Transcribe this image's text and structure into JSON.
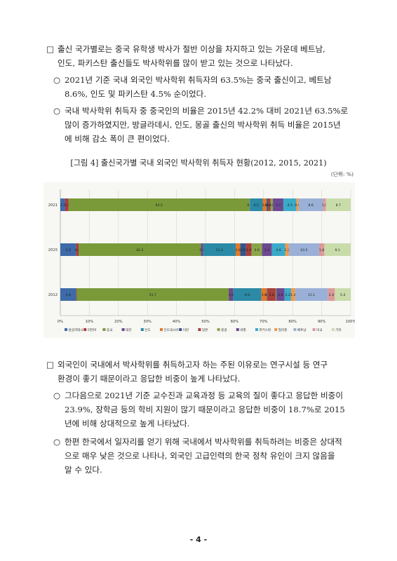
{
  "sec1": {
    "main": {
      "marker": "□",
      "line1": "출신 국가별로는 중국 유학생 박사가 절반 이상을 차지하고 있는 가운데 베트남,",
      "line2": "인도, 파키스탄 출신들도 박사학위를 많이 받고 있는 것으로 나타났다."
    },
    "sub1": {
      "marker": "○",
      "line1": "2021년 기준 국내 외국인 박사학위 취득자의 63.5%는 중국 출신이고, 베트남",
      "line2": "8.6%, 인도 및 파키스탄 4.5% 순이었다."
    },
    "sub2": {
      "marker": "○",
      "line1": "국내 박사학위 취득자 중 중국인의 비율은 2015년 42.2% 대비 2021년 63.5%로",
      "line2": "많이 증가하였지만, 방글라데시, 인도, 몽골 출신의 박사학위 취득 비율은 2015년",
      "line3": "에 비해 감소 폭이 큰 편이었다."
    }
  },
  "figure": {
    "caption": "[그림 4] 출신국가별 국내 외국인 박사학위 취득자 현황(2012, 2015, 2021)",
    "unit": "(단위: %)"
  },
  "chart_data": {
    "type": "bar",
    "orientation": "horizontal",
    "stacked": true,
    "categories": [
      "2021",
      "2015",
      "2012"
    ],
    "xlim": [
      0,
      100
    ],
    "xticks": [
      "0%",
      "10%",
      "20%",
      "30%",
      "40%",
      "50%",
      "60%",
      "70%",
      "80%",
      "90%",
      "100%"
    ],
    "grid": true,
    "legend_position": "bottom",
    "series": [
      {
        "name": "방글라데시",
        "color": "#3e6aa8",
        "values": [
          1.7,
          5.5,
          5.4
        ],
        "labels": [
          "1.7",
          "5.5",
          "5.4"
        ]
      },
      {
        "name": "미얀마",
        "color": "#b03a3a",
        "values": [
          1.2,
          0.8,
          0.2
        ],
        "labels": [
          "1.2",
          "0.8",
          ""
        ]
      },
      {
        "name": "중국",
        "color": "#7a9a3a",
        "values": [
          63.5,
          42.2,
          51.7
        ],
        "labels": [
          "63.5",
          "42.2",
          "51.7"
        ]
      },
      {
        "name": "대만",
        "color": "#6a4a8a",
        "values": [
          0.1,
          0.8,
          1.5
        ],
        "labels": [
          "0.1",
          "0.8",
          "1.5"
        ]
      },
      {
        "name": "인도",
        "color": "#2b8aa6",
        "values": [
          4.5,
          11.2,
          9.6
        ],
        "labels": [
          "4.5",
          "11.2",
          "9.6"
        ]
      },
      {
        "name": "인도네시아",
        "color": "#e07a2a",
        "values": [
          1.4,
          1.6,
          1.9
        ],
        "labels": [
          "1.4",
          "1.6",
          "1.9"
        ]
      },
      {
        "name": "이란",
        "color": "#34568c",
        "values": [
          0.6,
          2.0,
          0.2
        ],
        "labels": [
          "0.6",
          "2.0",
          "0.2"
        ]
      },
      {
        "name": "일본",
        "color": "#a8403c",
        "values": [
          0.8,
          1.9,
          2.8
        ],
        "labels": [
          "0.8",
          "1.9",
          "2.8"
        ]
      },
      {
        "name": "몽골",
        "color": "#8aa64a",
        "values": [
          0.8,
          3.6,
          0.2
        ],
        "labels": [
          "0.8",
          "3.6",
          ""
        ]
      },
      {
        "name": "네팔",
        "color": "#6c4a92",
        "values": [
          3.7,
          3.4,
          2.8
        ],
        "labels": [
          "3.7",
          "3.4",
          "2.8"
        ]
      },
      {
        "name": "파키스탄",
        "color": "#3aaac8",
        "values": [
          4.5,
          4.6,
          2.2
        ],
        "labels": [
          "4.5",
          "4.6",
          "2.2"
        ]
      },
      {
        "name": "필리핀",
        "color": "#f09a4a",
        "values": [
          0.8,
          1.2,
          1.4
        ],
        "labels": [
          "0.8",
          "1.2",
          "1.4"
        ]
      },
      {
        "name": "베트남",
        "color": "#9ab0d6",
        "values": [
          8.6,
          10.5,
          11.1
        ],
        "labels": [
          "8.6",
          "10.5",
          "11.1"
        ]
      },
      {
        "name": "미국",
        "color": "#dc9a9a",
        "values": [
          1.0,
          1.8,
          2.4
        ],
        "labels": [
          "1.0",
          "1.8",
          "2.4"
        ]
      },
      {
        "name": "기타",
        "color": "#c8dcaa",
        "values": [
          8.7,
          9.1,
          5.4
        ],
        "labels": [
          "8.7",
          "9.1",
          "5.4"
        ]
      }
    ]
  },
  "sec2": {
    "main": {
      "marker": "□",
      "line1": "외국인이 국내에서 박사학위를 취득하고자 하는 주된 이유로는 연구시설 등 연구",
      "line2": "환경이 좋기 때문이라고 응답한 비중이 높게 나타났다."
    },
    "sub1": {
      "marker": "○",
      "line1": "그다음으로 2021년 기준 교수진과 교육과정 등 교육의 질이 좋다고 응답한 비중이",
      "line2": "23.9%, 장학금 등의 학비 지원이 많기 때문이라고 응답한 비중이 18.7%로 2015",
      "line3": "년에 비해 상대적으로 높게 나타났다."
    },
    "sub2": {
      "marker": "○",
      "line1": "한편 한국에서 일자리를 얻기 위해 국내에서 박사학위를 취득하려는 비중은 상대적",
      "line2": "으로 매우 낮은 것으로 나타나, 외국인 고급인력의 한국 정착 유인이 크지 않음을",
      "line3": "알 수 있다."
    }
  },
  "footer": {
    "page_number": "- 4 -"
  }
}
